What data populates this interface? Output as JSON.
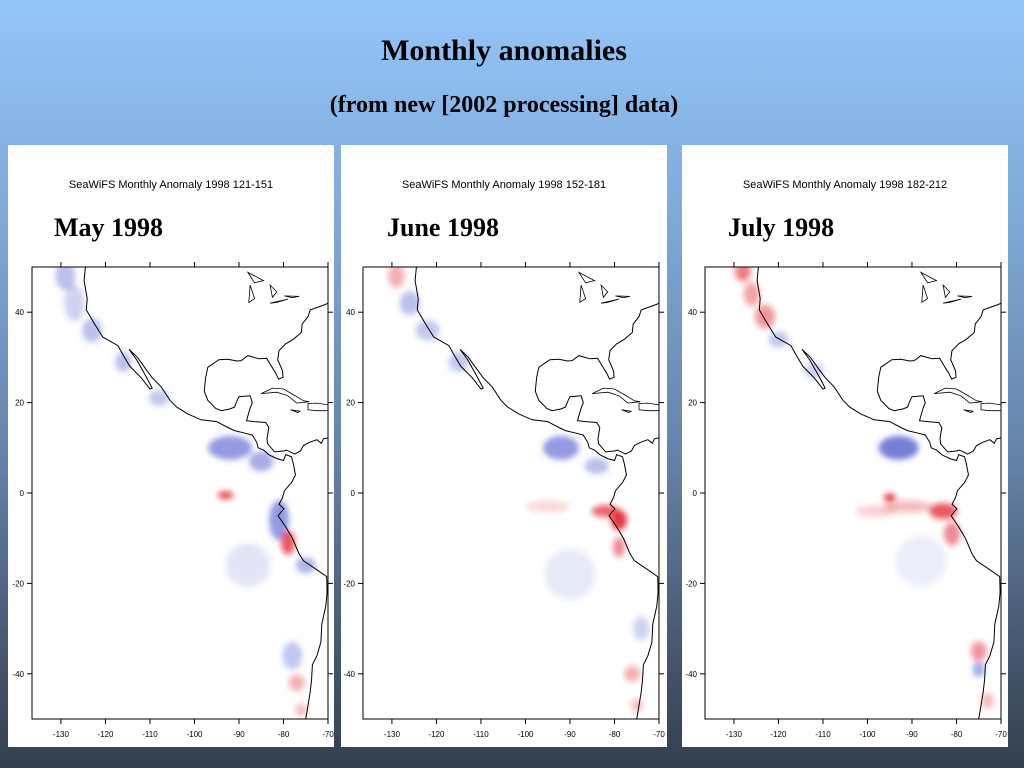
{
  "slide": {
    "title": "Monthly anomalies",
    "subtitle": "(from new [2002 processing] data)"
  },
  "axes": {
    "longitude_ticks": [
      "-130",
      "-120",
      "-110",
      "-100",
      "-90",
      "-80",
      "-70"
    ],
    "latitude_ticks": [
      "40",
      "20",
      "0",
      "-20",
      "-40"
    ]
  },
  "colors": {
    "positive_anomaly": "#e0141e",
    "negative_anomaly": "#3a48c8",
    "coastline": "#000000"
  },
  "panels": [
    {
      "header": "SeaWiFS Monthly Anomaly 1998  121-151",
      "label": "May 1998"
    },
    {
      "header": "SeaWiFS Monthly Anomaly 1998  152-181",
      "label": "June 1998"
    },
    {
      "header": "SeaWiFS Monthly Anomaly 1998  182-212",
      "label": "July 1998"
    }
  ]
}
